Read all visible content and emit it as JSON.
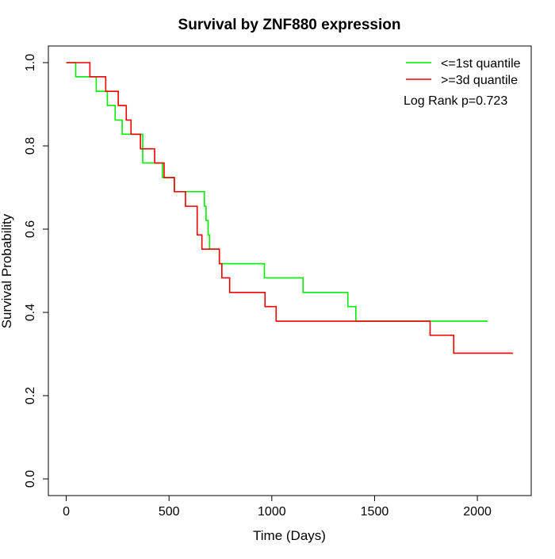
{
  "chart_data": {
    "type": "step",
    "title": "Survival by ZNF880 expression",
    "x_label": "Time (Days)",
    "y_label": "Survival Probability",
    "annotation": "Log Rank p=0.723",
    "legend": "topright",
    "xlim": [
      -87,
      2262
    ],
    "ylim": [
      -0.04,
      1.04
    ],
    "xticks": [
      0,
      500,
      1000,
      1500,
      2000
    ],
    "yticks": [
      {
        "value": 0,
        "label": "0.0"
      },
      {
        "value": 0.2,
        "label": "0.2"
      },
      {
        "value": 0.4,
        "label": "0.4"
      },
      {
        "value": 0.6,
        "label": "0.6"
      },
      {
        "value": 0.8,
        "label": "0.8"
      },
      {
        "value": 1,
        "label": "1.0"
      }
    ],
    "series": [
      {
        "name": "<=1st quantile",
        "color": "#00ee00",
        "x": [
          0,
          46,
          146,
          200,
          238,
          272,
          372,
          468,
          526,
          672,
          680,
          690,
          697,
          745,
          964,
          1152,
          1370,
          1409,
          2050
        ],
        "values": [
          1,
          0.966,
          0.931,
          0.897,
          0.862,
          0.828,
          0.759,
          0.724,
          0.69,
          0.655,
          0.621,
          0.586,
          0.552,
          0.517,
          0.483,
          0.448,
          0.414,
          0.379,
          0.379
        ]
      },
      {
        "name": ">=3d quantile",
        "color": "#ee0000",
        "x": [
          0,
          115,
          192,
          253,
          292,
          315,
          361,
          430,
          476,
          526,
          580,
          637,
          660,
          745,
          757,
          795,
          967,
          1021,
          1770,
          1885,
          2173
        ],
        "values": [
          1,
          0.966,
          0.931,
          0.897,
          0.862,
          0.828,
          0.793,
          0.759,
          0.724,
          0.69,
          0.655,
          0.586,
          0.552,
          0.517,
          0.483,
          0.448,
          0.414,
          0.379,
          0.345,
          0.302,
          0.302
        ]
      }
    ]
  }
}
